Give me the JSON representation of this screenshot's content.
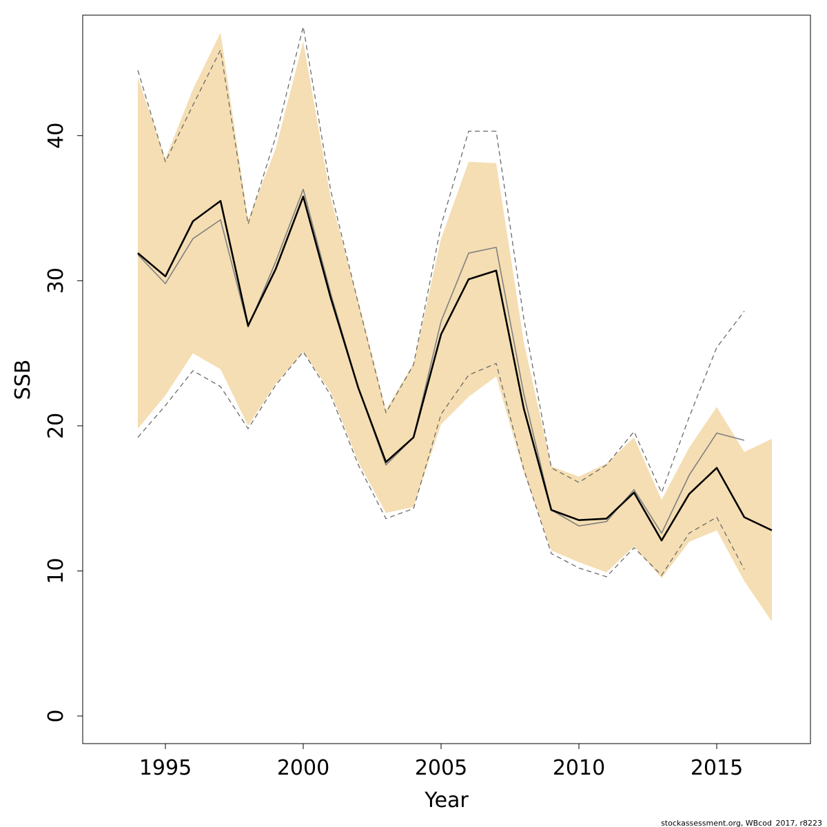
{
  "chart_data": {
    "type": "line",
    "xlabel": "Year",
    "ylabel": "SSB",
    "xlim": [
      1992.0,
      2018.4
    ],
    "ylim": [
      -1.9,
      48.3
    ],
    "x_ticks": [
      1995,
      2000,
      2005,
      2010,
      2015
    ],
    "y_ticks": [
      0,
      10,
      20,
      30,
      40
    ],
    "grid": false,
    "credit": "stockassessment.org, WBcod_2017, r8223",
    "colors": {
      "band": "#F5DEB3",
      "current": "#000000",
      "previous": "#808080",
      "previous_ci": "#696969"
    },
    "band": {
      "x": [
        1994,
        1995,
        1996,
        1997,
        1998,
        1999,
        2000,
        2001,
        2002,
        2003,
        2004,
        2005,
        2006,
        2007,
        2008,
        2009,
        2010,
        2011,
        2012,
        2013,
        2014,
        2015,
        2016,
        2017
      ],
      "upper": [
        44.0,
        38.4,
        43.2,
        47.1,
        34.2,
        39.1,
        46.5,
        35.7,
        28.6,
        21.1,
        24.3,
        32.9,
        38.2,
        38.1,
        25.8,
        17.2,
        16.5,
        17.4,
        19.2,
        14.9,
        18.5,
        21.3,
        18.2,
        19.1
      ],
      "lower": [
        19.8,
        22.1,
        25.0,
        23.9,
        20.0,
        22.9,
        25.1,
        22.3,
        17.5,
        14.0,
        14.4,
        20.1,
        22.0,
        23.4,
        16.8,
        11.4,
        10.6,
        9.9,
        11.7,
        9.5,
        12.0,
        12.8,
        9.3,
        6.5
      ]
    },
    "series": [
      {
        "role": "current",
        "x": [
          1994,
          1995,
          1996,
          1997,
          1998,
          1999,
          2000,
          2001,
          2002,
          2003,
          2004,
          2005,
          2006,
          2007,
          2008,
          2009,
          2010,
          2011,
          2012,
          2013,
          2014,
          2015,
          2016,
          2017
        ],
        "values": [
          31.9,
          30.3,
          34.1,
          35.5,
          26.9,
          30.8,
          35.8,
          28.8,
          22.6,
          17.5,
          19.2,
          26.3,
          30.1,
          30.7,
          21.2,
          14.2,
          13.5,
          13.6,
          15.4,
          12.1,
          15.3,
          17.1,
          13.7,
          12.8
        ]
      },
      {
        "role": "previous",
        "x": [
          1994,
          1995,
          1996,
          1997,
          1998,
          1999,
          2000,
          2001,
          2002,
          2003,
          2004,
          2005,
          2006,
          2007,
          2008,
          2009,
          2010,
          2011,
          2012,
          2013,
          2014,
          2015,
          2016
        ],
        "values": [
          31.8,
          29.8,
          32.9,
          34.2,
          26.8,
          31.3,
          36.3,
          29.1,
          22.6,
          17.3,
          19.2,
          27.2,
          31.9,
          32.3,
          22.2,
          14.2,
          13.1,
          13.4,
          15.6,
          12.6,
          16.6,
          19.5,
          19.0
        ]
      },
      {
        "role": "previous-ci-upper",
        "x": [
          1994,
          1995,
          1996,
          1997,
          1998,
          1999,
          2000,
          2001,
          2002,
          2003,
          2004,
          2005,
          2006,
          2007,
          2008,
          2009,
          2010,
          2011,
          2012,
          2013,
          2014,
          2015,
          2016
        ],
        "values": [
          44.5,
          38.2,
          42.1,
          45.9,
          33.9,
          39.9,
          47.5,
          36.2,
          28.4,
          20.9,
          24.2,
          33.8,
          40.3,
          40.3,
          27.4,
          17.1,
          16.1,
          17.3,
          19.6,
          15.4,
          20.6,
          25.4,
          27.9
        ]
      },
      {
        "role": "previous-ci-lower",
        "x": [
          1994,
          1995,
          1996,
          1997,
          1998,
          1999,
          2000,
          2001,
          2002,
          2003,
          2004,
          2005,
          2006,
          2007,
          2008,
          2009,
          2010,
          2011,
          2012,
          2013,
          2014,
          2015,
          2016
        ],
        "values": [
          19.2,
          21.4,
          23.8,
          22.7,
          19.8,
          22.8,
          25.1,
          22.1,
          17.3,
          13.6,
          14.3,
          20.8,
          23.5,
          24.3,
          17.0,
          11.2,
          10.2,
          9.6,
          11.6,
          9.7,
          12.6,
          13.7,
          10.1
        ]
      }
    ]
  }
}
